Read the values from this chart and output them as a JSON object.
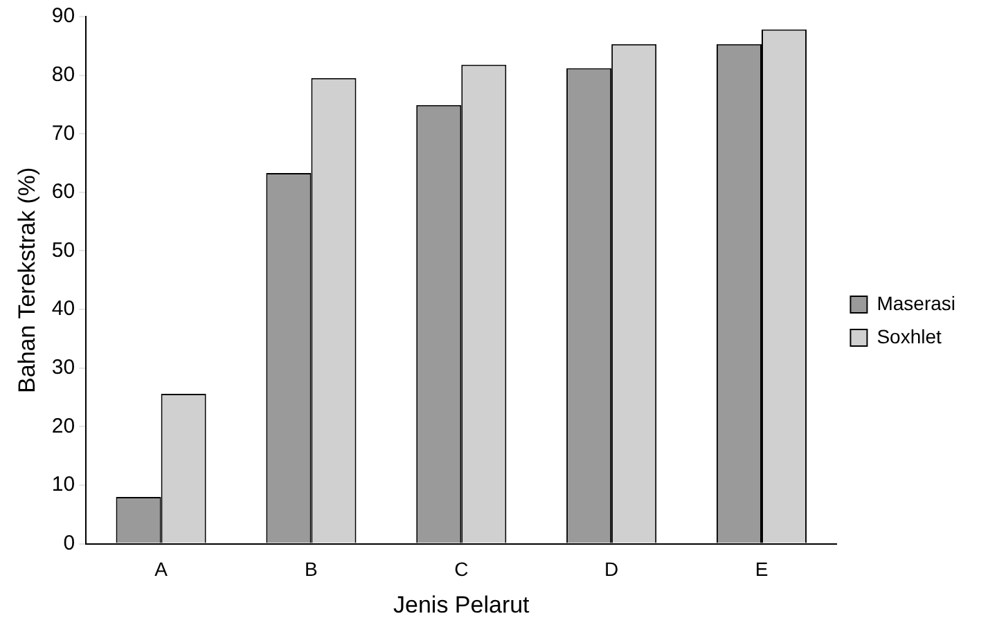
{
  "chart_data": {
    "type": "bar",
    "xlabel": "Jenis Pelarut",
    "ylabel": "Bahan Terekstrak (%)",
    "categories": [
      "A",
      "B",
      "C",
      "D",
      "E"
    ],
    "series": [
      {
        "name": "Maserasi",
        "color": "#9a9a9a",
        "values": [
          8,
          63.3,
          74.9,
          81.2,
          85.3
        ]
      },
      {
        "name": "Soxhlet",
        "color": "#d0d0d0",
        "values": [
          25.6,
          79.5,
          81.8,
          85.3,
          87.8
        ]
      }
    ],
    "ylim": [
      0,
      90
    ],
    "yticks": [
      0,
      10,
      20,
      30,
      40,
      50,
      60,
      70,
      80,
      90
    ],
    "grid": false,
    "legend": "right"
  }
}
